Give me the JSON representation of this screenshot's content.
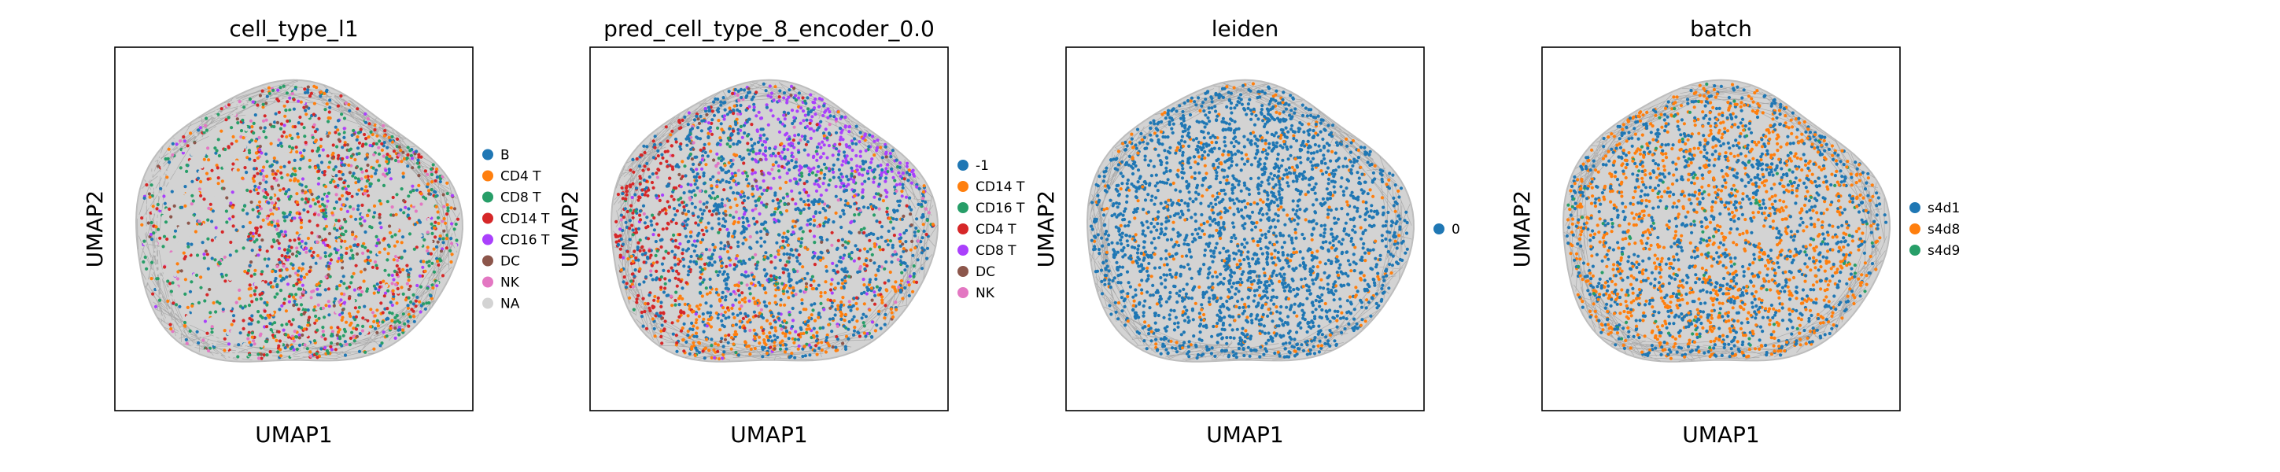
{
  "chart_data": [
    {
      "type": "scatter",
      "title": "cell_type_l1",
      "xlabel": "UMAP1",
      "ylabel": "UMAP2",
      "grid": false,
      "legend_position": "right",
      "legend": [
        {
          "label": "B",
          "color": "#1f77b4"
        },
        {
          "label": "CD4 T",
          "color": "#ff7f0e"
        },
        {
          "label": "CD8 T",
          "color": "#279e68"
        },
        {
          "label": "CD14 T",
          "color": "#d62728"
        },
        {
          "label": "CD16 T",
          "color": "#aa40fc"
        },
        {
          "label": "DC",
          "color": "#8c564b"
        },
        {
          "label": "NK",
          "color": "#e377c2"
        },
        {
          "label": "NA",
          "color": "#d3d3d3"
        }
      ]
    },
    {
      "type": "scatter",
      "title": "pred_cell_type_8_encoder_0.0",
      "xlabel": "UMAP1",
      "ylabel": "UMAP2",
      "grid": false,
      "legend_position": "right",
      "legend": [
        {
          "label": "-1",
          "color": "#1f77b4"
        },
        {
          "label": "CD14 T",
          "color": "#ff7f0e"
        },
        {
          "label": "CD16 T",
          "color": "#279e68"
        },
        {
          "label": "CD4 T",
          "color": "#d62728"
        },
        {
          "label": "CD8 T",
          "color": "#aa40fc"
        },
        {
          "label": "DC",
          "color": "#8c564b"
        },
        {
          "label": "NK",
          "color": "#e377c2"
        }
      ]
    },
    {
      "type": "scatter",
      "title": "leiden",
      "xlabel": "UMAP1",
      "ylabel": "UMAP2",
      "grid": false,
      "legend_position": "right",
      "legend": [
        {
          "label": "0",
          "color": "#1f77b4"
        }
      ]
    },
    {
      "type": "scatter",
      "title": "batch",
      "xlabel": "UMAP1",
      "ylabel": "UMAP2",
      "grid": false,
      "legend_position": "right",
      "legend": [
        {
          "label": "s4d1",
          "color": "#1f77b4"
        },
        {
          "label": "s4d8",
          "color": "#ff7f0e"
        },
        {
          "label": "s4d9",
          "color": "#279e68"
        }
      ]
    }
  ]
}
